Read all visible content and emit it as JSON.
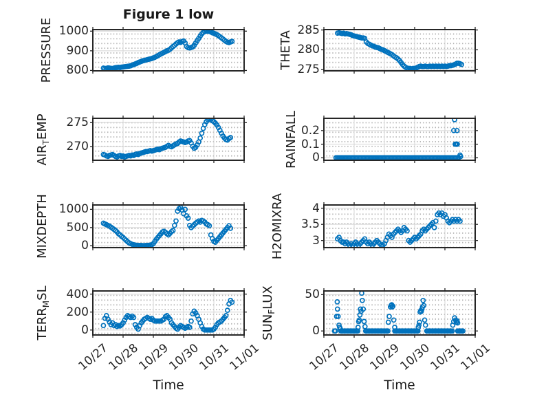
{
  "figure": {
    "title": "Figure 1 low",
    "x_axis": {
      "label": "Time",
      "xlim": [
        0,
        5
      ],
      "tick_values": [
        0,
        1,
        2,
        3,
        4,
        5
      ],
      "tick_labels": [
        "10/27",
        "10/28",
        "10/29",
        "10/30",
        "10/31",
        "11/01"
      ]
    },
    "style": {
      "marker_color": "#0072BD",
      "axes_color": "#262626",
      "grid_color": "#d4d4d4",
      "minor_grid_color": "#b0b0b0",
      "background": "#ffffff"
    }
  },
  "chart_data": [
    {
      "type": "scatter",
      "name": "pressure",
      "label_parts": [
        {
          "text": "PRESSURE",
          "sub": false
        }
      ],
      "ylim": [
        798,
        1008
      ],
      "yticks": [
        {
          "v": 800,
          "label": "800"
        },
        {
          "v": 900,
          "label": "900"
        },
        {
          "v": 1000,
          "label": "1000"
        }
      ],
      "series": {
        "t0": 0.35,
        "dt": 0.05,
        "values": [
          812,
          810,
          811,
          813,
          812,
          811,
          810,
          812,
          814,
          815,
          816,
          815,
          817,
          818,
          819,
          820,
          821,
          822,
          824,
          827,
          830,
          833,
          836,
          840,
          843,
          846,
          849,
          851,
          853,
          855,
          857,
          859,
          861,
          864,
          867,
          871,
          875,
          880,
          884,
          888,
          892,
          896,
          900,
          903,
          908,
          915,
          922,
          928,
          935,
          941,
          945,
          943,
          947,
          950,
          940,
          922,
          916,
          915,
          917,
          920,
          928,
          940,
          952,
          963,
          975,
          986,
          994,
          998,
          1000,
          1000,
          999,
          996,
          992,
          989,
          986,
          982,
          977,
          972,
          966,
          960,
          954,
          948,
          944,
          942,
          945,
          948
        ]
      }
    },
    {
      "type": "scatter",
      "name": "theta",
      "label_parts": [
        {
          "text": "THETA",
          "sub": false
        }
      ],
      "ylim": [
        274.7,
        285.1
      ],
      "yticks": [
        {
          "v": 275,
          "label": "275"
        },
        {
          "v": 280,
          "label": "280"
        },
        {
          "v": 285,
          "label": "285"
        }
      ],
      "series": {
        "t0": 0.45,
        "dt": 0.05,
        "values": [
          284.2,
          284.3,
          284.2,
          284.1,
          284.2,
          284.0,
          284.1,
          284.0,
          283.9,
          283.8,
          283.6,
          283.5,
          283.4,
          283.3,
          283.2,
          283.1,
          283.0,
          283.0,
          282.9,
          282.0,
          281.6,
          281.4,
          281.2,
          281.0,
          280.9,
          280.7,
          280.6,
          280.5,
          280.3,
          280.1,
          280.0,
          279.8,
          279.6,
          279.4,
          279.2,
          279.0,
          278.8,
          278.5,
          278.2,
          278.0,
          277.7,
          277.3,
          276.8,
          276.3,
          275.9,
          275.6,
          275.4,
          275.3,
          275.3,
          275.2,
          275.3,
          275.3,
          275.4,
          275.6,
          275.8,
          275.9,
          275.8,
          275.8,
          275.9,
          275.8,
          275.8,
          275.9,
          275.8,
          275.9,
          275.8,
          275.9,
          275.8,
          275.9,
          275.8,
          275.9,
          275.8,
          275.9,
          275.8,
          275.9,
          276.0,
          276.0,
          276.1,
          276.2,
          276.4,
          276.6,
          276.6,
          276.5,
          276.3
        ]
      }
    },
    {
      "type": "scatter",
      "name": "airtemp",
      "label_parts": [
        {
          "text": "AIR",
          "sub": false
        },
        {
          "text": "T",
          "sub": true
        },
        {
          "text": "EMP",
          "sub": false
        }
      ],
      "ylim": [
        267.2,
        275.9
      ],
      "yticks": [
        {
          "v": 270,
          "label": "270"
        },
        {
          "v": 275,
          "label": "275"
        }
      ],
      "series": {
        "t0": 0.35,
        "dt": 0.05,
        "values": [
          268.4,
          268.3,
          268.1,
          268.0,
          268.2,
          268.3,
          268.4,
          268.2,
          268.0,
          267.9,
          268.1,
          268.2,
          268.0,
          268.1,
          267.9,
          268.0,
          268.1,
          268.2,
          268.1,
          268.3,
          268.2,
          268.4,
          268.5,
          268.4,
          268.6,
          268.7,
          268.8,
          268.9,
          269.0,
          269.0,
          269.1,
          269.2,
          269.1,
          269.2,
          269.3,
          269.4,
          269.5,
          269.4,
          269.6,
          269.7,
          269.8,
          269.9,
          270.1,
          270.3,
          270.1,
          270.0,
          270.2,
          270.4,
          270.6,
          270.7,
          271.0,
          271.2,
          271.1,
          271.0,
          270.9,
          271.0,
          271.2,
          271.3,
          270.8,
          270.1,
          269.7,
          269.9,
          270.4,
          271.0,
          271.8,
          272.8,
          273.8,
          274.6,
          275.2,
          275.6,
          275.7,
          275.6,
          275.4,
          275.2,
          274.9,
          274.5,
          274.0,
          273.4,
          272.8,
          272.2,
          271.8,
          271.5,
          271.4,
          271.7,
          271.9
        ]
      }
    },
    {
      "type": "scatter",
      "name": "rainfall",
      "label_parts": [
        {
          "text": "RAINFALL",
          "sub": false
        }
      ],
      "ylim": [
        -0.018,
        0.29
      ],
      "yticks": [
        {
          "v": 0,
          "label": "0"
        },
        {
          "v": 0.1,
          "label": "0.1"
        },
        {
          "v": 0.2,
          "label": "0.2"
        }
      ],
      "zero_runs": [
        [
          0.4,
          4.47
        ]
      ],
      "zero_dt": 0.045,
      "extra_points": [
        [
          4.32,
          0.28
        ],
        [
          4.29,
          0.2
        ],
        [
          4.4,
          0.2
        ],
        [
          4.34,
          0.1
        ],
        [
          4.37,
          0.1
        ],
        [
          4.41,
          0.1
        ],
        [
          4.5,
          0.02
        ],
        [
          4.52,
          0.01
        ]
      ]
    },
    {
      "type": "scatter",
      "name": "mixdepth",
      "label_parts": [
        {
          "text": "MIXDEPTH",
          "sub": false
        }
      ],
      "ylim": [
        -50,
        1120
      ],
      "yticks": [
        {
          "v": 0,
          "label": "0"
        },
        {
          "v": 500,
          "label": "500"
        },
        {
          "v": 1000,
          "label": "1000"
        }
      ],
      "series": {
        "t0": 0.35,
        "dt": 0.05,
        "values": [
          620,
          600,
          580,
          560,
          540,
          510,
          480,
          450,
          420,
          380,
          330,
          300,
          260,
          230,
          190,
          150,
          110,
          80,
          60,
          40,
          30,
          20,
          15,
          10,
          10,
          8,
          5,
          5,
          8,
          10,
          15,
          20,
          30,
          60,
          120,
          180,
          230,
          280,
          330,
          380,
          400,
          370,
          330,
          300,
          340,
          390,
          420,
          560,
          680,
          950,
          1020,
          1050,
          980,
          880,
          1000,
          820,
          760,
          560,
          500,
          540,
          580,
          620,
          650,
          680,
          650,
          700,
          680,
          650,
          600,
          580,
          550,
          300,
          200,
          120,
          100,
          150,
          200,
          250,
          300,
          350,
          400,
          450,
          500,
          550,
          480
        ]
      }
    },
    {
      "type": "scatter",
      "name": "h2omixra",
      "label_parts": [
        {
          "text": "H2OMIXRA",
          "sub": false
        }
      ],
      "ylim": [
        2.78,
        4.1
      ],
      "yticks": [
        {
          "v": 3,
          "label": "3"
        },
        {
          "v": 3.5,
          "label": "3.5"
        },
        {
          "v": 4,
          "label": "4"
        }
      ],
      "series": {
        "t0": 0.45,
        "dt": 0.05,
        "values": [
          3.05,
          3.1,
          3.0,
          2.95,
          2.95,
          2.9,
          2.95,
          2.9,
          2.85,
          2.9,
          2.85,
          2.9,
          2.95,
          2.9,
          2.85,
          2.9,
          2.95,
          3.0,
          3.05,
          2.95,
          2.9,
          2.95,
          2.9,
          2.85,
          2.9,
          2.95,
          3.0,
          2.95,
          2.9,
          2.85,
          2.85,
          2.9,
          3.0,
          3.1,
          3.2,
          3.15,
          3.1,
          3.2,
          3.25,
          3.3,
          3.35,
          3.3,
          3.25,
          3.3,
          3.4,
          3.35,
          3.3,
          3.0,
          2.95,
          3.0,
          3.05,
          3.1,
          3.05,
          3.1,
          3.15,
          3.2,
          3.3,
          3.35,
          3.3,
          3.35,
          3.4,
          3.45,
          3.5,
          3.55,
          3.4,
          3.6,
          3.8,
          3.85,
          3.8,
          3.85,
          3.75,
          3.8,
          3.7,
          3.6,
          3.55,
          3.6,
          3.65,
          3.6,
          3.65,
          3.6,
          3.65,
          3.6
        ]
      }
    },
    {
      "type": "scatter",
      "name": "terrmsl",
      "label_parts": [
        {
          "text": "TERR",
          "sub": false
        },
        {
          "text": "M",
          "sub": true
        },
        {
          "text": "SL",
          "sub": false
        }
      ],
      "ylim": [
        -55,
        435
      ],
      "yticks": [
        {
          "v": 0,
          "label": "0"
        },
        {
          "v": 200,
          "label": "200"
        },
        {
          "v": 400,
          "label": "400"
        }
      ],
      "series": {
        "t0": 0.35,
        "dt": 0.05,
        "values": [
          50,
          130,
          160,
          120,
          90,
          60,
          80,
          50,
          60,
          40,
          50,
          45,
          60,
          80,
          110,
          140,
          160,
          150,
          140,
          155,
          140,
          60,
          30,
          10,
          50,
          80,
          100,
          120,
          130,
          140,
          130,
          120,
          130,
          110,
          100,
          100,
          100,
          100,
          100,
          110,
          120,
          150,
          160,
          140,
          120,
          80,
          60,
          40,
          20,
          10,
          30,
          50,
          40,
          30,
          20,
          30,
          40,
          30,
          100,
          180,
          210,
          190,
          160,
          120,
          80,
          40,
          10,
          0,
          0,
          0,
          0,
          0,
          0,
          10,
          30,
          60,
          80,
          90,
          100,
          120,
          140,
          160,
          220,
          290,
          330,
          310
        ]
      }
    },
    {
      "type": "scatter",
      "name": "sunflux",
      "label_parts": [
        {
          "text": "SUN",
          "sub": false
        },
        {
          "text": "F",
          "sub": true
        },
        {
          "text": "LUX",
          "sub": false
        }
      ],
      "ylim": [
        -5.5,
        55
      ],
      "yticks": [
        {
          "v": 0,
          "label": "0"
        },
        {
          "v": 50,
          "label": "50"
        }
      ],
      "zero_runs": [
        [
          0.35,
          0.4
        ],
        [
          0.56,
          1.12
        ],
        [
          1.38,
          2.12
        ],
        [
          2.34,
          3.12
        ],
        [
          3.4,
          4.26
        ],
        [
          4.42,
          4.6
        ]
      ],
      "zero_dt": 0.035,
      "extra_points": [
        [
          0.42,
          20
        ],
        [
          0.44,
          40
        ],
        [
          0.45,
          30
        ],
        [
          0.47,
          20
        ],
        [
          0.5,
          8
        ],
        [
          0.52,
          5
        ],
        [
          0.54,
          3
        ],
        [
          1.13,
          5
        ],
        [
          1.15,
          13
        ],
        [
          1.17,
          15
        ],
        [
          1.19,
          22
        ],
        [
          1.21,
          30
        ],
        [
          1.23,
          27
        ],
        [
          1.25,
          52
        ],
        [
          1.27,
          42
        ],
        [
          1.3,
          30
        ],
        [
          1.33,
          13
        ],
        [
          1.36,
          6
        ],
        [
          2.13,
          12
        ],
        [
          2.16,
          20
        ],
        [
          2.2,
          33
        ],
        [
          2.22,
          35
        ],
        [
          2.24,
          36
        ],
        [
          2.26,
          33
        ],
        [
          2.28,
          34
        ],
        [
          2.31,
          15
        ],
        [
          2.34,
          5
        ],
        [
          3.12,
          5
        ],
        [
          3.14,
          8
        ],
        [
          3.16,
          12
        ],
        [
          3.18,
          26
        ],
        [
          3.2,
          28
        ],
        [
          3.22,
          27
        ],
        [
          3.24,
          30
        ],
        [
          3.26,
          33
        ],
        [
          3.28,
          42
        ],
        [
          3.3,
          35
        ],
        [
          3.33,
          15
        ],
        [
          3.36,
          8
        ],
        [
          4.26,
          8
        ],
        [
          4.29,
          13
        ],
        [
          4.32,
          18
        ],
        [
          4.35,
          15
        ],
        [
          4.38,
          12
        ],
        [
          4.4,
          14
        ],
        [
          4.42,
          11
        ]
      ]
    }
  ]
}
